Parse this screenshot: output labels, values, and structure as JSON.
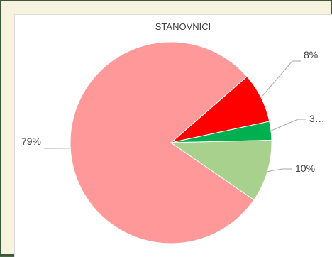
{
  "chart_data": {
    "type": "pie",
    "title": "STANOVNICI",
    "categories": [
      "",
      "",
      "",
      ""
    ],
    "values": [
      79,
      8,
      3,
      10
    ],
    "labels": [
      "79%",
      "8%",
      "3…",
      "10%"
    ],
    "colors": [
      "#ff9999",
      "#ff0000",
      "#00b050",
      "#a9d18e"
    ],
    "legend": "none"
  }
}
